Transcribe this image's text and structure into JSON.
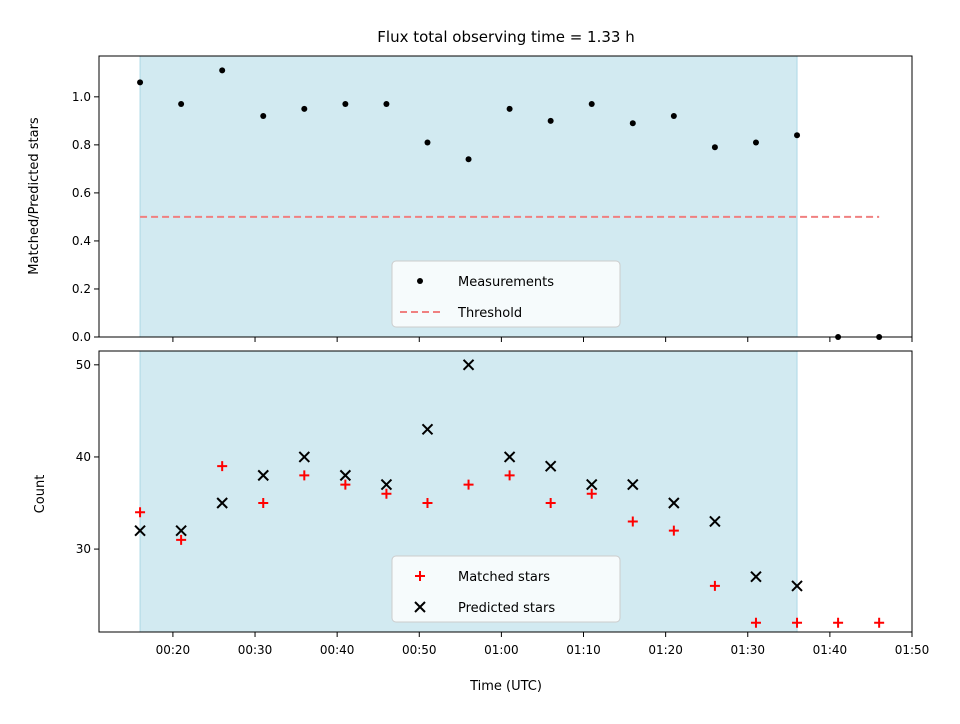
{
  "chart_data": [
    {
      "type": "scatter",
      "title": "Flux total observing time = 1.33 h",
      "ylabel": "Matched/Predicted stars",
      "ylim": [
        0,
        1.17
      ],
      "yticks": [
        "0.0",
        "0.2",
        "0.4",
        "0.6",
        "0.8",
        "1.0"
      ],
      "shaded_region": {
        "x_start": 16,
        "x_end": 96,
        "color": "#add8e6"
      },
      "series": [
        {
          "name": "Measurements",
          "marker": "dot",
          "color": "#000000",
          "x": [
            16,
            21,
            26,
            31,
            36,
            41,
            46,
            51,
            56,
            61,
            66,
            71,
            76,
            81,
            86,
            91,
            96,
            101,
            106
          ],
          "y": [
            1.06,
            0.97,
            1.11,
            0.92,
            0.95,
            0.97,
            0.97,
            0.81,
            0.74,
            0.95,
            0.9,
            0.97,
            0.89,
            0.92,
            0.79,
            0.81,
            0.84,
            0.0,
            0.0
          ]
        },
        {
          "name": "Threshold",
          "line": "dashed",
          "color": "#f08080",
          "x": [
            16,
            106
          ],
          "y": [
            0.5,
            0.5
          ]
        }
      ],
      "legend": "lower center"
    },
    {
      "type": "scatter",
      "ylabel": "Count",
      "xlabel": "Time (UTC)",
      "ylim": [
        21,
        51.5
      ],
      "yticks": [
        "30",
        "40",
        "50"
      ],
      "xlim": [
        11,
        110
      ],
      "xticks": [
        "00:20",
        "00:30",
        "00:40",
        "00:50",
        "01:00",
        "01:10",
        "01:20",
        "01:30",
        "01:40",
        "01:50"
      ],
      "shaded_region": {
        "x_start": 16,
        "x_end": 96,
        "color": "#add8e6"
      },
      "series": [
        {
          "name": "Matched stars",
          "marker": "plus",
          "color": "#ff0000",
          "x": [
            16,
            21,
            26,
            31,
            36,
            41,
            46,
            51,
            56,
            61,
            66,
            71,
            76,
            81,
            86,
            91,
            96,
            101,
            106
          ],
          "y": [
            34,
            31,
            39,
            35,
            38,
            37,
            36,
            35,
            37,
            38,
            35,
            36,
            33,
            32,
            26,
            22,
            22,
            22,
            22
          ]
        },
        {
          "name": "Predicted stars",
          "marker": "x",
          "color": "#000000",
          "x": [
            16,
            21,
            26,
            31,
            36,
            41,
            46,
            51,
            56,
            61,
            66,
            71,
            76,
            81,
            86,
            91,
            96
          ],
          "y": [
            32,
            32,
            35,
            38,
            40,
            38,
            37,
            43,
            50,
            40,
            39,
            37,
            37,
            35,
            33,
            27,
            26
          ]
        }
      ],
      "legend": "lower center"
    }
  ]
}
